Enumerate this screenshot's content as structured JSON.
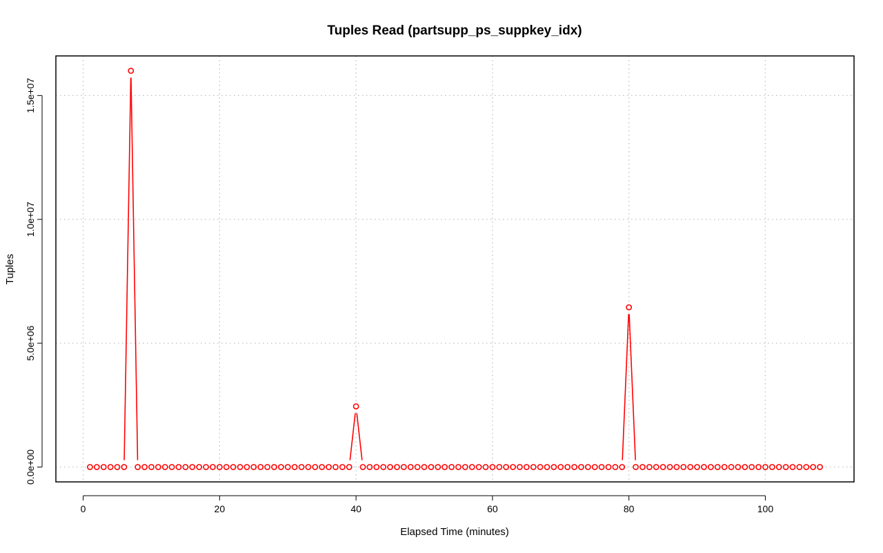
{
  "chart_data": {
    "type": "line",
    "title": "Tuples Read (partsupp_ps_suppkey_idx)",
    "xlabel": "Elapsed Time (minutes)",
    "ylabel": "Tuples",
    "xlim": [
      -4,
      113
    ],
    "ylim": [
      -600000,
      16600000
    ],
    "x_ticks": [
      0,
      20,
      40,
      60,
      80,
      100
    ],
    "x_tick_labels": [
      "0",
      "20",
      "40",
      "60",
      "80",
      "100"
    ],
    "y_ticks": [
      0,
      5000000,
      10000000,
      15000000
    ],
    "y_tick_labels": [
      "0.0e+00",
      "5.0e+06",
      "1.0e+07",
      "1.5e+07"
    ],
    "grid": true,
    "colors": {
      "series": "#ff0000",
      "grid": "#bebebe",
      "axis": "#000000"
    },
    "series": [
      {
        "x": [
          1,
          2,
          3,
          4,
          5,
          6,
          7,
          8,
          9,
          10,
          11,
          12,
          13,
          14,
          15,
          16,
          17,
          18,
          19,
          20,
          21,
          22,
          23,
          24,
          25,
          26,
          27,
          28,
          29,
          30,
          31,
          32,
          33,
          34,
          35,
          36,
          37,
          38,
          39,
          40,
          41,
          42,
          43,
          44,
          45,
          46,
          47,
          48,
          49,
          50,
          51,
          52,
          53,
          54,
          55,
          56,
          57,
          58,
          59,
          60,
          61,
          62,
          63,
          64,
          65,
          66,
          67,
          68,
          69,
          70,
          71,
          72,
          73,
          74,
          75,
          76,
          77,
          78,
          79,
          80,
          81,
          82,
          83,
          84,
          85,
          86,
          87,
          88,
          89,
          90,
          91,
          92,
          93,
          94,
          95,
          96,
          97,
          98,
          99,
          100,
          101,
          102,
          103,
          104,
          105,
          106,
          107,
          108
        ],
        "y": [
          0,
          0,
          0,
          0,
          0,
          0,
          16000000,
          0,
          0,
          0,
          0,
          0,
          0,
          0,
          0,
          0,
          0,
          0,
          0,
          0,
          0,
          0,
          0,
          0,
          0,
          0,
          0,
          0,
          0,
          0,
          0,
          0,
          0,
          0,
          0,
          0,
          0,
          0,
          0,
          2450000,
          0,
          0,
          0,
          0,
          0,
          0,
          0,
          0,
          0,
          0,
          0,
          0,
          0,
          0,
          0,
          0,
          0,
          0,
          0,
          0,
          0,
          0,
          0,
          0,
          0,
          0,
          0,
          0,
          0,
          0,
          0,
          0,
          0,
          0,
          0,
          0,
          0,
          0,
          0,
          6450000,
          0,
          0,
          0,
          0,
          0,
          0,
          0,
          0,
          0,
          0,
          0,
          0,
          0,
          0,
          0,
          0,
          0,
          0,
          0,
          0,
          0,
          0,
          0,
          0,
          0,
          0,
          0,
          0
        ]
      }
    ]
  }
}
